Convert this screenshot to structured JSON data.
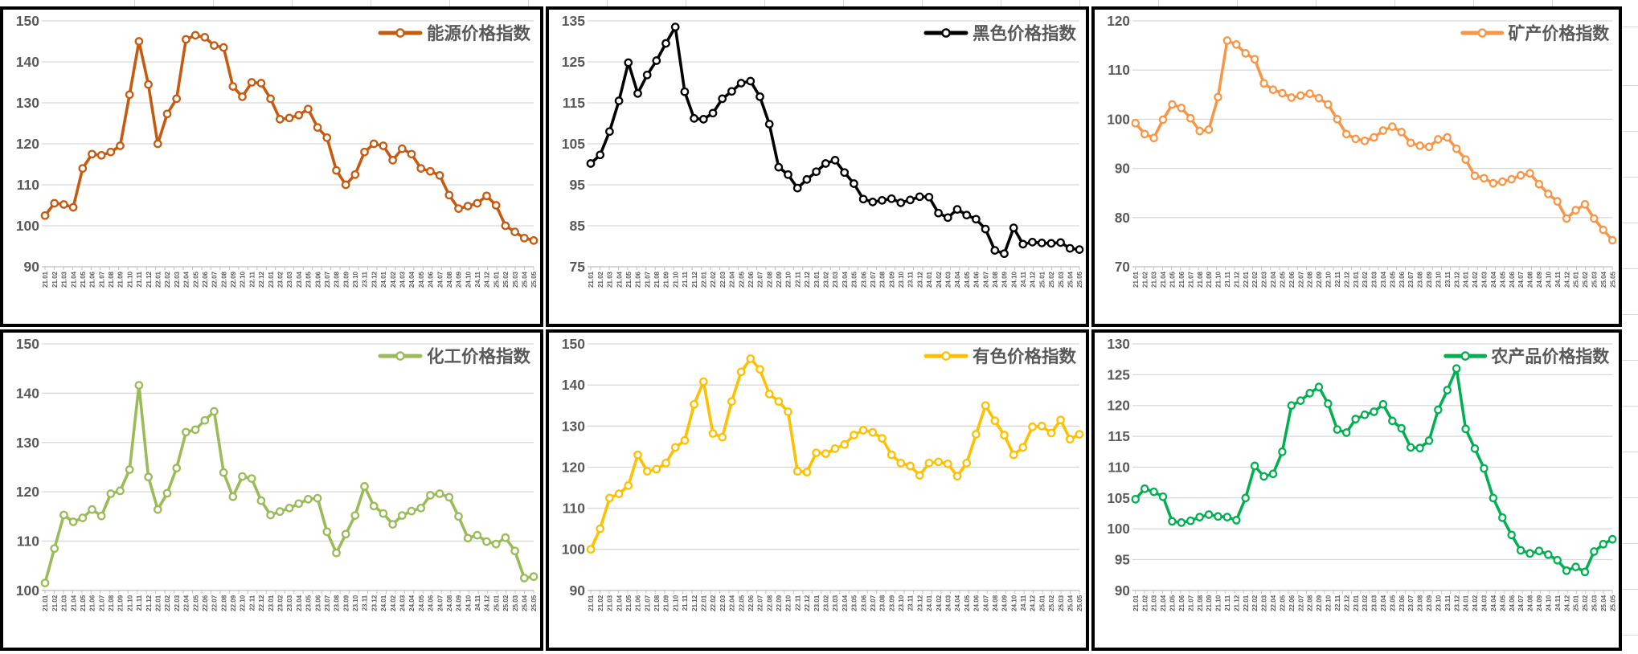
{
  "categories": [
    "21.01",
    "21.02",
    "21.03",
    "21.04",
    "21.05",
    "21.06",
    "21.07",
    "21.08",
    "21.09",
    "21.10",
    "21.11",
    "21.12",
    "22.01",
    "22.02",
    "22.03",
    "22.04",
    "22.05",
    "22.06",
    "22.07",
    "22.08",
    "22.09",
    "22.10",
    "22.11",
    "22.12",
    "23.01",
    "23.02",
    "23.03",
    "23.04",
    "23.05",
    "23.06",
    "23.07",
    "23.08",
    "23.09",
    "23.10",
    "23.11",
    "23.12",
    "24.01",
    "24.02",
    "24.03",
    "24.04",
    "24.05",
    "24.06",
    "24.07",
    "24.08",
    "24.09",
    "24.10",
    "24.11",
    "24.12",
    "25.01",
    "25.02",
    "25.03",
    "25.04",
    "25.05"
  ],
  "style": {
    "grid_color": "#d9d9d9",
    "axis_line_color": "#bfbfbf",
    "tick_color": "#bfbfbf",
    "axis_text_color": "#595959",
    "legend_text_color": "#595959",
    "marker_fill": "#ffffff",
    "legend_position": "top-right",
    "grid": "horizontal"
  },
  "chart_data": [
    {
      "type": "line",
      "legend": "能源价格指数",
      "color": "#C55A11",
      "ylim": [
        90,
        150
      ],
      "y_step": 10,
      "values": [
        102.5,
        105.5,
        105.2,
        104.5,
        114.0,
        117.5,
        117.2,
        118.0,
        119.5,
        132.0,
        145.0,
        134.5,
        120.0,
        127.3,
        131.0,
        145.5,
        146.5,
        146.0,
        144.0,
        143.5,
        134.0,
        131.5,
        135.0,
        134.8,
        131.0,
        126.0,
        126.3,
        127.0,
        128.5,
        124.0,
        121.5,
        113.5,
        110.0,
        112.5,
        118.0,
        120.0,
        119.5,
        116.0,
        118.8,
        117.5,
        114.0,
        113.3,
        112.3,
        107.5,
        104.2,
        104.8,
        105.5,
        107.3,
        105.0,
        100.0,
        98.5,
        97.0,
        96.4
      ]
    },
    {
      "type": "line",
      "legend": "黑色价格指数",
      "color": "#000000",
      "ylim": [
        75,
        135
      ],
      "y_step": 10,
      "values": [
        100.2,
        102.3,
        108.0,
        115.5,
        124.8,
        117.3,
        121.8,
        125.3,
        129.5,
        133.5,
        117.7,
        111.2,
        111.0,
        112.5,
        116.0,
        117.8,
        119.8,
        120.3,
        116.5,
        109.8,
        99.3,
        97.5,
        94.2,
        96.3,
        98.2,
        100.2,
        101.0,
        98.0,
        95.3,
        91.5,
        90.8,
        91.2,
        91.6,
        90.6,
        91.3,
        92.1,
        92.0,
        88.1,
        87.0,
        89.0,
        87.6,
        86.6,
        84.2,
        79.0,
        78.2,
        84.5,
        80.5,
        81.0,
        80.8,
        80.7,
        80.9,
        79.5,
        79.2
      ]
    },
    {
      "type": "line",
      "legend": "矿产价格指数",
      "color": "#F79646",
      "ylim": [
        70,
        120
      ],
      "y_step": 10,
      "values": [
        99.2,
        97.0,
        96.2,
        99.9,
        103.0,
        102.3,
        100.2,
        97.6,
        97.9,
        104.5,
        116.0,
        115.2,
        113.4,
        112.2,
        107.3,
        106.0,
        105.3,
        104.4,
        104.8,
        105.2,
        104.3,
        103.0,
        100.0,
        97.0,
        96.0,
        95.6,
        96.3,
        97.7,
        98.5,
        97.4,
        95.2,
        94.6,
        94.4,
        95.9,
        96.3,
        94.0,
        91.8,
        88.5,
        88.0,
        87.0,
        87.3,
        87.8,
        88.6,
        89.0,
        86.8,
        84.8,
        83.3,
        79.8,
        81.5,
        82.7,
        79.8,
        77.5,
        75.4
      ]
    },
    {
      "type": "line",
      "legend": "化工价格指数",
      "color": "#9BBB59",
      "ylim": [
        100,
        150
      ],
      "y_step": 10,
      "values": [
        101.5,
        108.5,
        115.3,
        113.9,
        114.7,
        116.4,
        115.1,
        119.6,
        120.2,
        124.5,
        141.6,
        123.0,
        116.4,
        119.7,
        124.8,
        132.1,
        132.6,
        134.5,
        136.3,
        123.9,
        119.0,
        123.1,
        122.7,
        118.2,
        115.3,
        116.0,
        116.7,
        117.6,
        118.5,
        118.7,
        111.9,
        107.6,
        111.4,
        115.2,
        121.1,
        117.1,
        115.6,
        113.4,
        115.2,
        116.1,
        116.7,
        119.3,
        119.6,
        118.9,
        115.0,
        110.6,
        111.2,
        109.9,
        109.4,
        110.7,
        108.0,
        102.5,
        102.8
      ]
    },
    {
      "type": "line",
      "legend": "有色价格指数",
      "color": "#FFC000",
      "ylim": [
        90,
        150
      ],
      "y_step": 10,
      "values": [
        100.0,
        105.0,
        112.5,
        113.5,
        115.5,
        123.0,
        119.0,
        119.5,
        121.0,
        124.8,
        126.5,
        135.3,
        140.8,
        128.2,
        127.3,
        136.0,
        143.2,
        146.4,
        143.8,
        137.8,
        136.0,
        133.5,
        119.0,
        118.8,
        123.5,
        123.3,
        124.5,
        125.5,
        127.8,
        129.0,
        128.5,
        127.0,
        123.0,
        121.0,
        120.3,
        118.0,
        121.0,
        121.3,
        120.8,
        117.8,
        121.0,
        128.0,
        135.0,
        131.3,
        127.8,
        123.0,
        124.8,
        129.8,
        130.0,
        128.3,
        131.5,
        126.8,
        128.0
      ]
    },
    {
      "type": "line",
      "legend": "农产品价格指数",
      "color": "#00B050",
      "ylim": [
        90,
        130
      ],
      "y_step": 5,
      "values": [
        104.8,
        106.5,
        106.0,
        105.2,
        101.2,
        101.0,
        101.3,
        101.9,
        102.3,
        102.0,
        101.9,
        101.4,
        105.0,
        110.2,
        108.5,
        108.9,
        112.5,
        120.0,
        120.8,
        122.0,
        123.0,
        120.3,
        116.1,
        115.6,
        117.8,
        118.5,
        119.0,
        120.2,
        117.5,
        116.3,
        113.2,
        113.1,
        114.3,
        119.3,
        122.5,
        126.0,
        116.2,
        113.0,
        109.8,
        105.0,
        101.8,
        99.0,
        96.5,
        96.0,
        96.4,
        95.8,
        94.9,
        93.2,
        93.8,
        93.0,
        96.3,
        97.5,
        98.3
      ]
    }
  ]
}
